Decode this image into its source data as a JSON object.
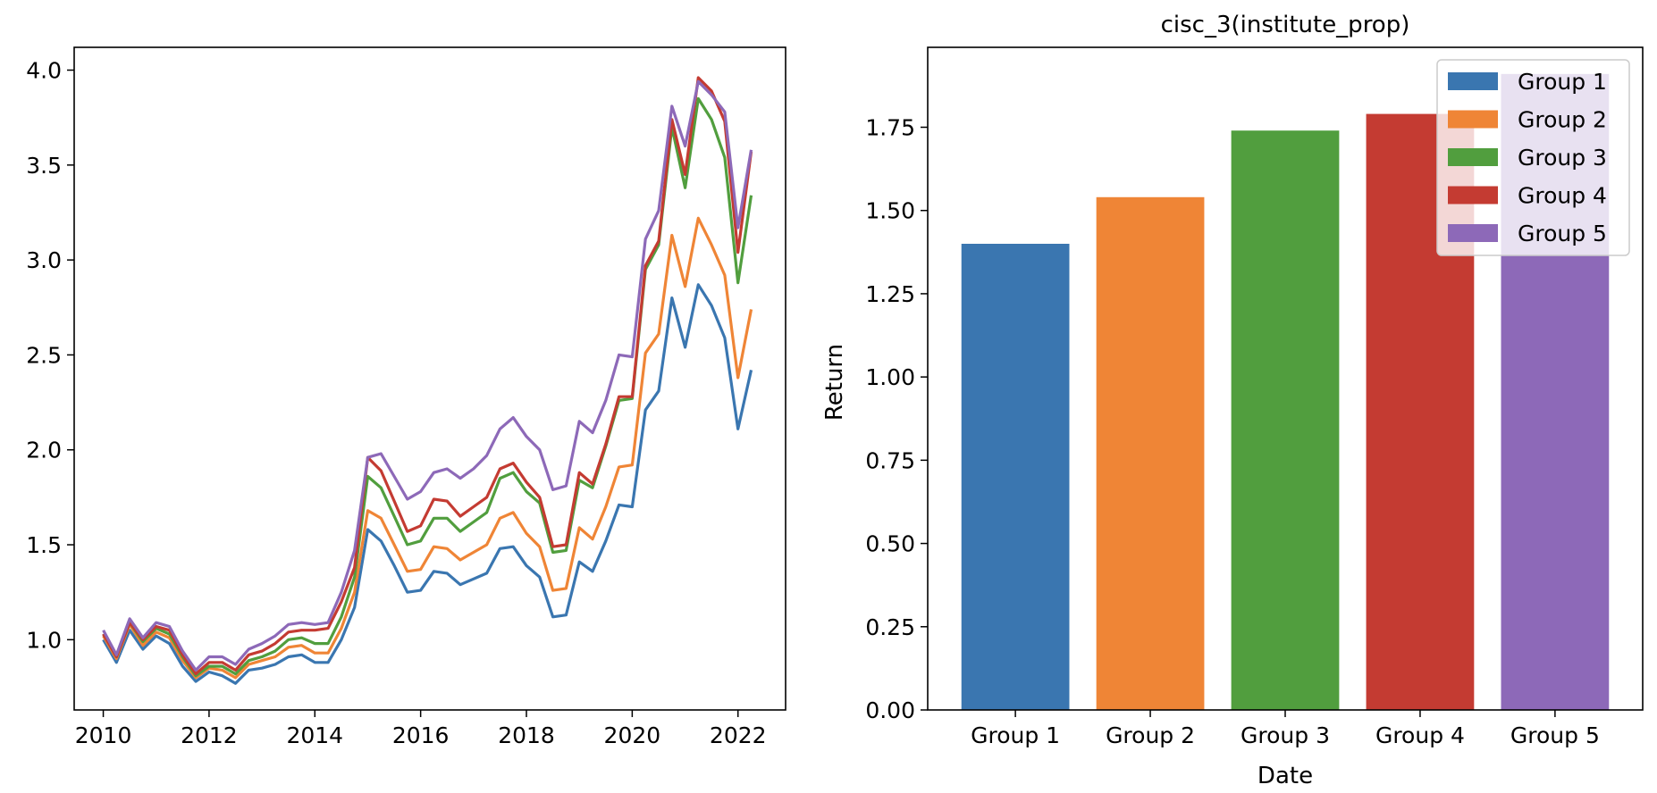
{
  "figure": {
    "left_title": "",
    "right_title": "cisc_3(institute_prop)"
  },
  "colors": {
    "Group 1": "#3a76b0",
    "Group 2": "#ef8536",
    "Group 3": "#519e3e",
    "Group 4": "#c43b32",
    "Group 5": "#8d69b8"
  },
  "chart_data": [
    {
      "type": "line",
      "title": "",
      "xlabel": "",
      "ylabel": "",
      "x_ticks": [
        "2010",
        "2012",
        "2014",
        "2016",
        "2018",
        "2020",
        "2022"
      ],
      "y_ticks": [
        "1.0",
        "1.5",
        "2.0",
        "2.5",
        "3.0",
        "3.5",
        "4.0"
      ],
      "xlim": [
        2009.45,
        2022.9
      ],
      "ylim": [
        0.63,
        4.12
      ],
      "grid": false,
      "x": [
        2010.0,
        2010.25,
        2010.5,
        2010.75,
        2011.0,
        2011.25,
        2011.5,
        2011.75,
        2012.0,
        2012.25,
        2012.5,
        2012.75,
        2013.0,
        2013.25,
        2013.5,
        2013.75,
        2014.0,
        2014.25,
        2014.5,
        2014.75,
        2015.0,
        2015.25,
        2015.5,
        2015.75,
        2016.0,
        2016.25,
        2016.5,
        2016.75,
        2017.0,
        2017.25,
        2017.5,
        2017.75,
        2018.0,
        2018.25,
        2018.5,
        2018.75,
        2019.0,
        2019.25,
        2019.5,
        2019.75,
        2020.0,
        2020.25,
        2020.5,
        2020.75,
        2021.0,
        2021.25,
        2021.5,
        2021.75,
        2022.0,
        2022.25
      ],
      "series": [
        {
          "name": "Group 1",
          "values": [
            1.0,
            0.88,
            1.05,
            0.95,
            1.02,
            0.98,
            0.86,
            0.78,
            0.83,
            0.81,
            0.77,
            0.84,
            0.85,
            0.87,
            0.91,
            0.92,
            0.88,
            0.88,
            1.0,
            1.17,
            1.58,
            1.52,
            1.39,
            1.25,
            1.26,
            1.36,
            1.35,
            1.29,
            1.32,
            1.35,
            1.48,
            1.49,
            1.39,
            1.33,
            1.12,
            1.13,
            1.41,
            1.36,
            1.52,
            1.71,
            1.7,
            2.21,
            2.31,
            2.8,
            2.54,
            2.87,
            2.76,
            2.59,
            2.11,
            2.42
          ]
        },
        {
          "name": "Group 2",
          "values": [
            1.02,
            0.9,
            1.08,
            0.97,
            1.04,
            1.01,
            0.89,
            0.8,
            0.85,
            0.84,
            0.8,
            0.87,
            0.89,
            0.91,
            0.96,
            0.97,
            0.93,
            0.93,
            1.06,
            1.25,
            1.68,
            1.64,
            1.5,
            1.36,
            1.37,
            1.49,
            1.48,
            1.42,
            1.46,
            1.5,
            1.64,
            1.67,
            1.56,
            1.49,
            1.26,
            1.27,
            1.59,
            1.53,
            1.7,
            1.91,
            1.92,
            2.51,
            2.61,
            3.13,
            2.86,
            3.22,
            3.08,
            2.92,
            2.38,
            2.74
          ]
        },
        {
          "name": "Group 3",
          "values": [
            1.03,
            0.91,
            1.09,
            0.99,
            1.06,
            1.03,
            0.91,
            0.81,
            0.86,
            0.86,
            0.82,
            0.89,
            0.91,
            0.94,
            1.0,
            1.01,
            0.98,
            0.98,
            1.12,
            1.33,
            1.86,
            1.8,
            1.65,
            1.5,
            1.52,
            1.64,
            1.64,
            1.57,
            1.62,
            1.67,
            1.85,
            1.88,
            1.78,
            1.72,
            1.46,
            1.47,
            1.84,
            1.8,
            2.02,
            2.26,
            2.27,
            2.95,
            3.08,
            3.7,
            3.38,
            3.85,
            3.74,
            3.54,
            2.88,
            3.34
          ]
        },
        {
          "name": "Group 4",
          "values": [
            1.03,
            0.91,
            1.09,
            1.0,
            1.07,
            1.05,
            0.92,
            0.82,
            0.88,
            0.88,
            0.84,
            0.92,
            0.94,
            0.98,
            1.04,
            1.05,
            1.05,
            1.06,
            1.2,
            1.38,
            1.96,
            1.89,
            1.73,
            1.57,
            1.6,
            1.74,
            1.73,
            1.65,
            1.7,
            1.75,
            1.9,
            1.93,
            1.83,
            1.75,
            1.49,
            1.5,
            1.88,
            1.82,
            2.03,
            2.28,
            2.28,
            2.97,
            3.1,
            3.74,
            3.45,
            3.96,
            3.89,
            3.73,
            3.04,
            3.57
          ]
        },
        {
          "name": "Group 5",
          "values": [
            1.05,
            0.92,
            1.11,
            1.01,
            1.09,
            1.07,
            0.94,
            0.84,
            0.91,
            0.91,
            0.87,
            0.95,
            0.98,
            1.02,
            1.08,
            1.09,
            1.08,
            1.09,
            1.25,
            1.47,
            1.96,
            1.98,
            1.86,
            1.74,
            1.78,
            1.88,
            1.9,
            1.85,
            1.9,
            1.97,
            2.11,
            2.17,
            2.07,
            2.0,
            1.79,
            1.81,
            2.15,
            2.09,
            2.26,
            2.5,
            2.49,
            3.11,
            3.26,
            3.81,
            3.6,
            3.94,
            3.87,
            3.78,
            3.17,
            3.58
          ]
        }
      ]
    },
    {
      "type": "bar",
      "title": "cisc_3(institute_prop)",
      "xlabel": "Date",
      "ylabel": "Return",
      "categories": [
        "Group 1",
        "Group 2",
        "Group 3",
        "Group 4",
        "Group 5"
      ],
      "values": [
        1.4,
        1.54,
        1.74,
        1.79,
        1.91
      ],
      "y_ticks": [
        "0.00",
        "0.25",
        "0.50",
        "0.75",
        "1.00",
        "1.25",
        "1.50",
        "1.75"
      ],
      "ylim": [
        0,
        1.99
      ],
      "legend": {
        "placement": "top-right",
        "entries": [
          "Group 1",
          "Group 2",
          "Group 3",
          "Group 4",
          "Group 5"
        ]
      },
      "grid": false
    }
  ]
}
